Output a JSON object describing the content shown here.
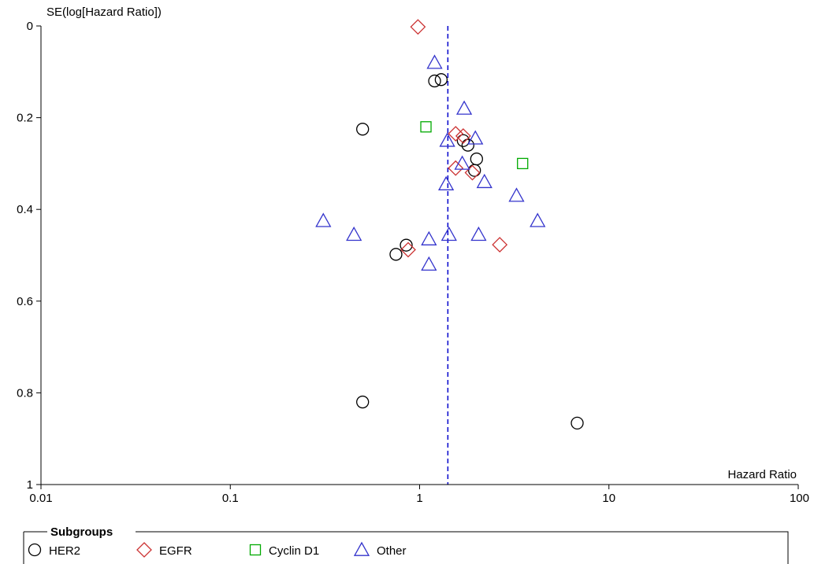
{
  "chart_data": {
    "type": "scatter",
    "xlabel": "Hazard Ratio",
    "ylabel": "SE(log[Hazard Ratio])",
    "x_scale": "log",
    "xlim": [
      0.01,
      100
    ],
    "ylim": [
      0,
      1
    ],
    "y_inverted": true,
    "x_ticks": [
      {
        "value": 0.01,
        "label": "0.01"
      },
      {
        "value": 0.1,
        "label": "0.1"
      },
      {
        "value": 1,
        "label": "1"
      },
      {
        "value": 10,
        "label": "10"
      },
      {
        "value": 100,
        "label": "100"
      }
    ],
    "y_ticks": [
      {
        "value": 0,
        "label": "0"
      },
      {
        "value": 0.2,
        "label": "0.2"
      },
      {
        "value": 0.4,
        "label": "0.4"
      },
      {
        "value": 0.6,
        "label": "0.6"
      },
      {
        "value": 0.8,
        "label": "0.8"
      },
      {
        "value": 1,
        "label": "1"
      }
    ],
    "reference_line": {
      "x": 1.41,
      "style": "dashed",
      "color": "#0000cc"
    },
    "legend": {
      "title": "Subgroups",
      "placement": "bottom"
    },
    "series": [
      {
        "name": "HER2",
        "marker": "circle",
        "color": "#000000",
        "points": [
          {
            "x": 0.5,
            "y": 0.225
          },
          {
            "x": 1.2,
            "y": 0.12
          },
          {
            "x": 1.3,
            "y": 0.117
          },
          {
            "x": 1.7,
            "y": 0.25
          },
          {
            "x": 1.8,
            "y": 0.26
          },
          {
            "x": 2.0,
            "y": 0.29
          },
          {
            "x": 1.95,
            "y": 0.315
          },
          {
            "x": 0.85,
            "y": 0.478
          },
          {
            "x": 0.75,
            "y": 0.498
          },
          {
            "x": 0.5,
            "y": 0.82
          },
          {
            "x": 6.8,
            "y": 0.866
          }
        ]
      },
      {
        "name": "EGFR",
        "marker": "diamond",
        "color": "#cc3333",
        "points": [
          {
            "x": 0.98,
            "y": 0.002
          },
          {
            "x": 1.55,
            "y": 0.235
          },
          {
            "x": 1.7,
            "y": 0.24
          },
          {
            "x": 1.55,
            "y": 0.31
          },
          {
            "x": 1.9,
            "y": 0.32
          },
          {
            "x": 0.87,
            "y": 0.488
          },
          {
            "x": 2.65,
            "y": 0.477
          }
        ]
      },
      {
        "name": "Cyclin D1",
        "marker": "square",
        "color": "#00aa00",
        "points": [
          {
            "x": 1.08,
            "y": 0.22
          },
          {
            "x": 3.5,
            "y": 0.3
          }
        ]
      },
      {
        "name": "Other",
        "marker": "triangle",
        "color": "#3333cc",
        "points": [
          {
            "x": 1.2,
            "y": 0.08
          },
          {
            "x": 1.72,
            "y": 0.18
          },
          {
            "x": 1.4,
            "y": 0.25
          },
          {
            "x": 1.97,
            "y": 0.245
          },
          {
            "x": 1.68,
            "y": 0.3
          },
          {
            "x": 1.38,
            "y": 0.345
          },
          {
            "x": 2.2,
            "y": 0.34
          },
          {
            "x": 3.25,
            "y": 0.37
          },
          {
            "x": 4.2,
            "y": 0.425
          },
          {
            "x": 0.31,
            "y": 0.425
          },
          {
            "x": 0.45,
            "y": 0.455
          },
          {
            "x": 1.43,
            "y": 0.455
          },
          {
            "x": 2.05,
            "y": 0.455
          },
          {
            "x": 1.12,
            "y": 0.465
          },
          {
            "x": 1.12,
            "y": 0.52
          }
        ]
      }
    ]
  }
}
